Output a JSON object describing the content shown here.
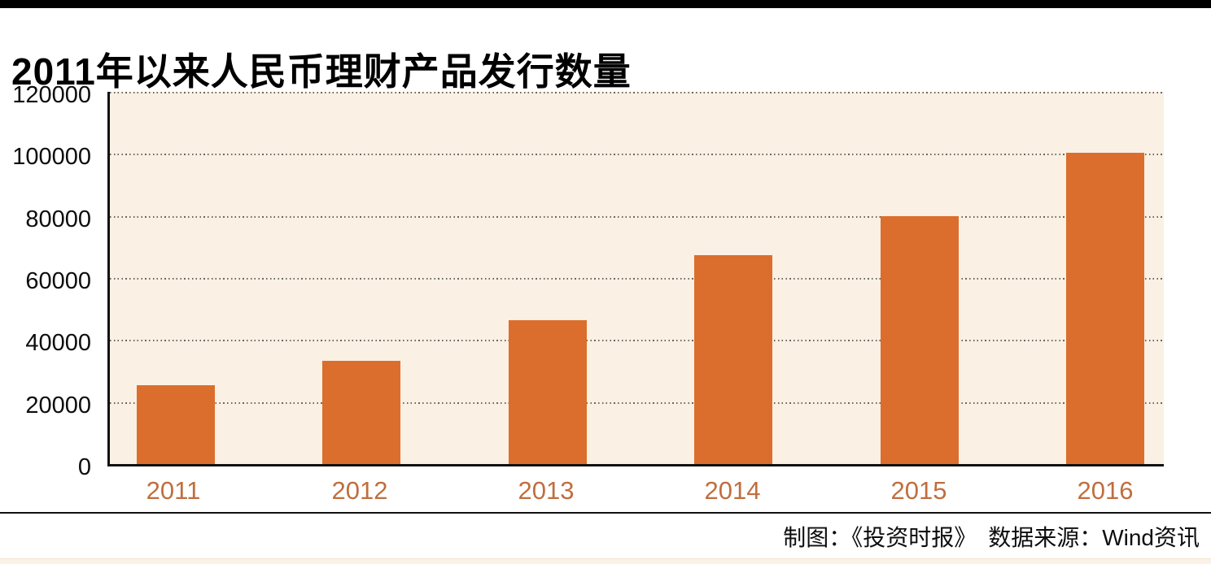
{
  "page": {
    "footer_credit": "制图：《投资时报》　数据来源：Wind资讯"
  },
  "colors": {
    "top_bar": "#000000",
    "axis": "#111111",
    "plot_bg": "#faf0e4",
    "gridline": "#6b665d",
    "bar": "#db6e2c",
    "year_label": "#c06e3e",
    "bottom_strip": "#fbf2e7"
  },
  "chart_data": {
    "type": "bar",
    "title": "2011年以来人民币理财产品发行数量",
    "categories": [
      "2011",
      "2012",
      "2013",
      "2014",
      "2015",
      "2016"
    ],
    "values": [
      25500,
      33300,
      46500,
      67300,
      80000,
      100300
    ],
    "xlabel": "",
    "ylabel": "",
    "ylim": [
      0,
      120000
    ],
    "y_ticks": [
      120000,
      100000,
      80000,
      60000,
      40000,
      20000,
      0
    ],
    "grid": "horizontal-dotted",
    "legend": "none",
    "plot_background": "#faf0e4",
    "bar_color": "#db6e2c"
  }
}
